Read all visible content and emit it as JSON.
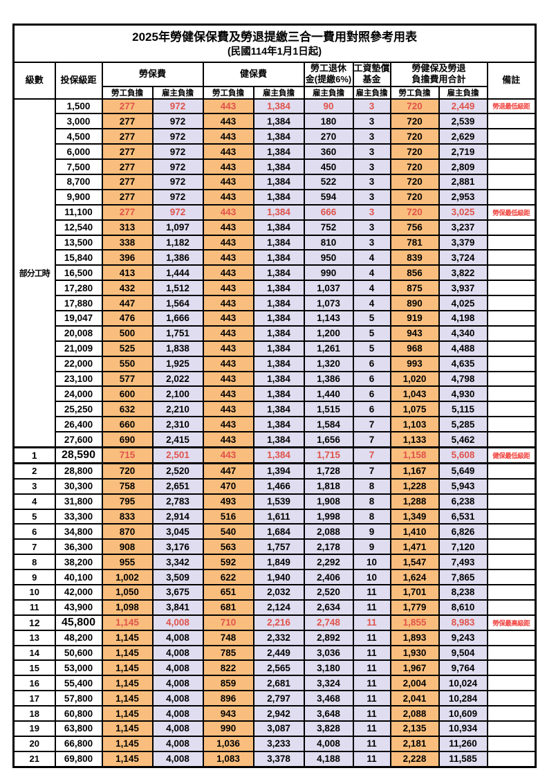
{
  "title": "2025年勞健保保費及勞退提繳三合一費用對照參考用表",
  "subtitle": "(民國114年1月1日起)",
  "columns": {
    "level": "級數",
    "bracket": "投保級距",
    "labor_group": "勞保費",
    "health_group": "健保費",
    "pension_line1": "勞工退休",
    "pension_line2": "金(提繳6%)",
    "wage_fund_line1": "工資墊償",
    "wage_fund_line2": "基金",
    "total_line1": "勞健保及勞退",
    "total_line2": "負擔費用合計",
    "employee_share": "勞工負擔",
    "employer_share": "雇主負擔",
    "remark": "備註"
  },
  "colors": {
    "employee_bg": "#F9BE7D",
    "employer_bg": "#DFDDEF",
    "red_value": "#E0524B",
    "red_remark": "#F14540",
    "border": "#000000"
  },
  "part_time": {
    "label": "部分工時",
    "span": 23
  },
  "rows": [
    {
      "level": "",
      "bracket": "1,500",
      "v": [
        "277",
        "972",
        "443",
        "1,384",
        "90",
        "3",
        "720",
        "2,449"
      ],
      "remark": "勞退最低級距",
      "hl": true
    },
    {
      "level": "",
      "bracket": "3,000",
      "v": [
        "277",
        "972",
        "443",
        "1,384",
        "180",
        "3",
        "720",
        "2,539"
      ],
      "remark": ""
    },
    {
      "level": "",
      "bracket": "4,500",
      "v": [
        "277",
        "972",
        "443",
        "1,384",
        "270",
        "3",
        "720",
        "2,629"
      ],
      "remark": ""
    },
    {
      "level": "",
      "bracket": "6,000",
      "v": [
        "277",
        "972",
        "443",
        "1,384",
        "360",
        "3",
        "720",
        "2,719"
      ],
      "remark": ""
    },
    {
      "level": "",
      "bracket": "7,500",
      "v": [
        "277",
        "972",
        "443",
        "1,384",
        "450",
        "3",
        "720",
        "2,809"
      ],
      "remark": ""
    },
    {
      "level": "",
      "bracket": "8,700",
      "v": [
        "277",
        "972",
        "443",
        "1,384",
        "522",
        "3",
        "720",
        "2,881"
      ],
      "remark": ""
    },
    {
      "level": "",
      "bracket": "9,900",
      "v": [
        "277",
        "972",
        "443",
        "1,384",
        "594",
        "3",
        "720",
        "2,953"
      ],
      "remark": ""
    },
    {
      "level": "",
      "bracket": "11,100",
      "v": [
        "277",
        "972",
        "443",
        "1,384",
        "666",
        "3",
        "720",
        "3,025"
      ],
      "remark": "勞保最低級距",
      "hl": true
    },
    {
      "level": "",
      "bracket": "12,540",
      "v": [
        "313",
        "1,097",
        "443",
        "1,384",
        "752",
        "3",
        "756",
        "3,237"
      ],
      "remark": ""
    },
    {
      "level": "",
      "bracket": "13,500",
      "v": [
        "338",
        "1,182",
        "443",
        "1,384",
        "810",
        "3",
        "781",
        "3,379"
      ],
      "remark": ""
    },
    {
      "level": "",
      "bracket": "15,840",
      "v": [
        "396",
        "1,386",
        "443",
        "1,384",
        "950",
        "4",
        "839",
        "3,724"
      ],
      "remark": ""
    },
    {
      "level": "",
      "bracket": "16,500",
      "v": [
        "413",
        "1,444",
        "443",
        "1,384",
        "990",
        "4",
        "856",
        "3,822"
      ],
      "remark": ""
    },
    {
      "level": "",
      "bracket": "17,280",
      "v": [
        "432",
        "1,512",
        "443",
        "1,384",
        "1,037",
        "4",
        "875",
        "3,937"
      ],
      "remark": ""
    },
    {
      "level": "",
      "bracket": "17,880",
      "v": [
        "447",
        "1,564",
        "443",
        "1,384",
        "1,073",
        "4",
        "890",
        "4,025"
      ],
      "remark": ""
    },
    {
      "level": "",
      "bracket": "19,047",
      "v": [
        "476",
        "1,666",
        "443",
        "1,384",
        "1,143",
        "5",
        "919",
        "4,198"
      ],
      "remark": ""
    },
    {
      "level": "",
      "bracket": "20,008",
      "v": [
        "500",
        "1,751",
        "443",
        "1,384",
        "1,200",
        "5",
        "943",
        "4,340"
      ],
      "remark": ""
    },
    {
      "level": "",
      "bracket": "21,009",
      "v": [
        "525",
        "1,838",
        "443",
        "1,384",
        "1,261",
        "5",
        "968",
        "4,488"
      ],
      "remark": ""
    },
    {
      "level": "",
      "bracket": "22,000",
      "v": [
        "550",
        "1,925",
        "443",
        "1,384",
        "1,320",
        "6",
        "993",
        "4,635"
      ],
      "remark": ""
    },
    {
      "level": "",
      "bracket": "23,100",
      "v": [
        "577",
        "2,022",
        "443",
        "1,384",
        "1,386",
        "6",
        "1,020",
        "4,798"
      ],
      "remark": ""
    },
    {
      "level": "",
      "bracket": "24,000",
      "v": [
        "600",
        "2,100",
        "443",
        "1,384",
        "1,440",
        "6",
        "1,043",
        "4,930"
      ],
      "remark": ""
    },
    {
      "level": "",
      "bracket": "25,250",
      "v": [
        "632",
        "2,210",
        "443",
        "1,384",
        "1,515",
        "6",
        "1,075",
        "5,115"
      ],
      "remark": ""
    },
    {
      "level": "",
      "bracket": "26,400",
      "v": [
        "660",
        "2,310",
        "443",
        "1,384",
        "1,584",
        "7",
        "1,103",
        "5,285"
      ],
      "remark": ""
    },
    {
      "level": "",
      "bracket": "27,600",
      "v": [
        "690",
        "2,415",
        "443",
        "1,384",
        "1,656",
        "7",
        "1,133",
        "5,462"
      ],
      "remark": ""
    },
    {
      "level": "1",
      "bracket": "28,590",
      "v": [
        "715",
        "2,501",
        "443",
        "1,384",
        "1,715",
        "7",
        "1,158",
        "5,608"
      ],
      "remark": "健保最低級距",
      "hl": true,
      "big": true,
      "thick": true
    },
    {
      "level": "2",
      "bracket": "28,800",
      "v": [
        "720",
        "2,520",
        "447",
        "1,394",
        "1,728",
        "7",
        "1,167",
        "5,649"
      ],
      "remark": ""
    },
    {
      "level": "3",
      "bracket": "30,300",
      "v": [
        "758",
        "2,651",
        "470",
        "1,466",
        "1,818",
        "8",
        "1,228",
        "5,943"
      ],
      "remark": ""
    },
    {
      "level": "4",
      "bracket": "31,800",
      "v": [
        "795",
        "2,783",
        "493",
        "1,539",
        "1,908",
        "8",
        "1,288",
        "6,238"
      ],
      "remark": ""
    },
    {
      "level": "5",
      "bracket": "33,300",
      "v": [
        "833",
        "2,914",
        "516",
        "1,611",
        "1,998",
        "8",
        "1,349",
        "6,531"
      ],
      "remark": ""
    },
    {
      "level": "6",
      "bracket": "34,800",
      "v": [
        "870",
        "3,045",
        "540",
        "1,684",
        "2,088",
        "9",
        "1,410",
        "6,826"
      ],
      "remark": ""
    },
    {
      "level": "7",
      "bracket": "36,300",
      "v": [
        "908",
        "3,176",
        "563",
        "1,757",
        "2,178",
        "9",
        "1,471",
        "7,120"
      ],
      "remark": ""
    },
    {
      "level": "8",
      "bracket": "38,200",
      "v": [
        "955",
        "3,342",
        "592",
        "1,849",
        "2,292",
        "10",
        "1,547",
        "7,493"
      ],
      "remark": ""
    },
    {
      "level": "9",
      "bracket": "40,100",
      "v": [
        "1,002",
        "3,509",
        "622",
        "1,940",
        "2,406",
        "10",
        "1,624",
        "7,865"
      ],
      "remark": ""
    },
    {
      "level": "10",
      "bracket": "42,000",
      "v": [
        "1,050",
        "3,675",
        "651",
        "2,032",
        "2,520",
        "11",
        "1,701",
        "8,238"
      ],
      "remark": ""
    },
    {
      "level": "11",
      "bracket": "43,900",
      "v": [
        "1,098",
        "3,841",
        "681",
        "2,124",
        "2,634",
        "11",
        "1,779",
        "8,610"
      ],
      "remark": ""
    },
    {
      "level": "12",
      "bracket": "45,800",
      "v": [
        "1,145",
        "4,008",
        "710",
        "2,216",
        "2,748",
        "11",
        "1,855",
        "8,983"
      ],
      "remark": "勞保最高級距",
      "hl": true,
      "big": true
    },
    {
      "level": "13",
      "bracket": "48,200",
      "v": [
        "1,145",
        "4,008",
        "748",
        "2,332",
        "2,892",
        "11",
        "1,893",
        "9,243"
      ],
      "remark": ""
    },
    {
      "level": "14",
      "bracket": "50,600",
      "v": [
        "1,145",
        "4,008",
        "785",
        "2,449",
        "3,036",
        "11",
        "1,930",
        "9,504"
      ],
      "remark": ""
    },
    {
      "level": "15",
      "bracket": "53,000",
      "v": [
        "1,145",
        "4,008",
        "822",
        "2,565",
        "3,180",
        "11",
        "1,967",
        "9,764"
      ],
      "remark": ""
    },
    {
      "level": "16",
      "bracket": "55,400",
      "v": [
        "1,145",
        "4,008",
        "859",
        "2,681",
        "3,324",
        "11",
        "2,004",
        "10,024"
      ],
      "remark": ""
    },
    {
      "level": "17",
      "bracket": "57,800",
      "v": [
        "1,145",
        "4,008",
        "896",
        "2,797",
        "3,468",
        "11",
        "2,041",
        "10,284"
      ],
      "remark": ""
    },
    {
      "level": "18",
      "bracket": "60,800",
      "v": [
        "1,145",
        "4,008",
        "943",
        "2,942",
        "3,648",
        "11",
        "2,088",
        "10,609"
      ],
      "remark": ""
    },
    {
      "level": "19",
      "bracket": "63,800",
      "v": [
        "1,145",
        "4,008",
        "990",
        "3,087",
        "3,828",
        "11",
        "2,135",
        "10,934"
      ],
      "remark": ""
    },
    {
      "level": "20",
      "bracket": "66,800",
      "v": [
        "1,145",
        "4,008",
        "1,036",
        "3,233",
        "4,008",
        "11",
        "2,181",
        "11,260"
      ],
      "remark": ""
    },
    {
      "level": "21",
      "bracket": "69,800",
      "v": [
        "1,145",
        "4,008",
        "1,083",
        "3,378",
        "4,188",
        "11",
        "2,228",
        "11,585"
      ],
      "remark": ""
    }
  ]
}
